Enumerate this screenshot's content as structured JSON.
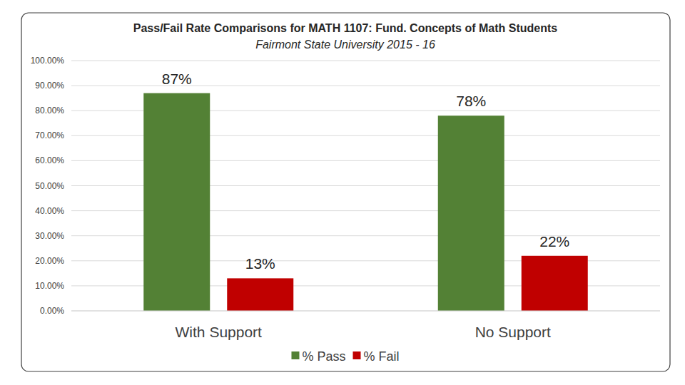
{
  "chart_data": {
    "type": "bar",
    "title": "Pass/Fail Rate Comparisons for MATH 1107: Fund. Concepts of Math Students",
    "subtitle": "Fairmont State University 2015 - 16",
    "categories": [
      "With Support",
      "No Support"
    ],
    "series": [
      {
        "name": "% Pass",
        "color": "#538135",
        "values": [
          87,
          78
        ],
        "value_labels": [
          "87%",
          "78%"
        ]
      },
      {
        "name": "% Fail",
        "color": "#c00000",
        "values": [
          13,
          22
        ],
        "value_labels": [
          "13%",
          "22%"
        ]
      }
    ],
    "ylim": [
      0,
      100
    ],
    "yticks": [
      {
        "value": 0,
        "label": "0.00%"
      },
      {
        "value": 10,
        "label": "10.00%"
      },
      {
        "value": 20,
        "label": "20.00%"
      },
      {
        "value": 30,
        "label": "30.00%"
      },
      {
        "value": 40,
        "label": "40.00%"
      },
      {
        "value": 50,
        "label": "50.00%"
      },
      {
        "value": 60,
        "label": "60.00%"
      },
      {
        "value": 70,
        "label": "70.00%"
      },
      {
        "value": 80,
        "label": "80.00%"
      },
      {
        "value": 90,
        "label": "90.00%"
      },
      {
        "value": 100,
        "label": "100.00%"
      }
    ],
    "grid": true,
    "data_labels": true,
    "legend": "bottom"
  }
}
